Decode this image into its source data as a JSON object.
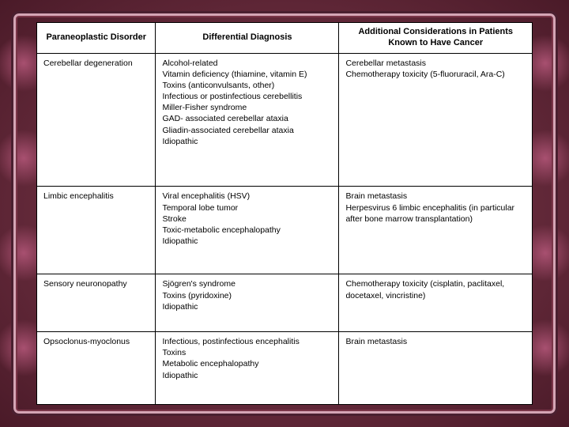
{
  "table": {
    "columns": [
      "Paraneoplastic Disorder",
      "Differential Diagnosis",
      "Additional Considerations in Patients Known to Have Cancer"
    ],
    "rows": [
      {
        "disorder": "Cerebellar degeneration",
        "differential": "Alcohol-related\nVitamin deficiency (thiamine, vitamin E)\nToxins (anticonvulsants, other)\nInfectious or postinfectious cerebellitis\nMiller-Fisher syndrome\nGAD- associated cerebellar ataxia\nGliadin-associated cerebellar ataxia\nIdiopathic",
        "additional": "Cerebellar metastasis\nChemotherapy toxicity (5-fluoruracil, Ara-C)"
      },
      {
        "disorder": "Limbic encephalitis",
        "differential": "Viral encephalitis (HSV)\nTemporal lobe tumor\nStroke\nToxic-metabolic encephalopathy\nIdiopathic",
        "additional": "Brain metastasis\nHerpesvirus 6 limbic encephalitis (in particular after bone marrow transplantation)"
      },
      {
        "disorder": "Sensory neuronopathy",
        "differential": "Sjögren's syndrome\nToxins (pyridoxine)\nIdiopathic",
        "additional": "Chemotherapy toxicity (cisplatin, paclitaxel, docetaxel, vincristine)"
      },
      {
        "disorder": "Opsoclonus-myoclonus",
        "differential": "Infectious, postinfectious encephalitis\nToxins\nMetabolic encephalopathy\nIdiopathic",
        "additional": "Brain metastasis"
      }
    ],
    "styling": {
      "border_color": "#000000",
      "background_color": "#ffffff",
      "header_fontsize": 11,
      "body_fontsize": 10.5,
      "font_family": "Arial",
      "column_widths_pct": [
        24,
        37,
        39
      ]
    }
  },
  "slide": {
    "background_gradient": [
      "#8a4055",
      "#4a1a28"
    ],
    "frame_outer": "#4a2030",
    "frame_inner": "#d4a5b5",
    "decor_color": "#a85070"
  }
}
